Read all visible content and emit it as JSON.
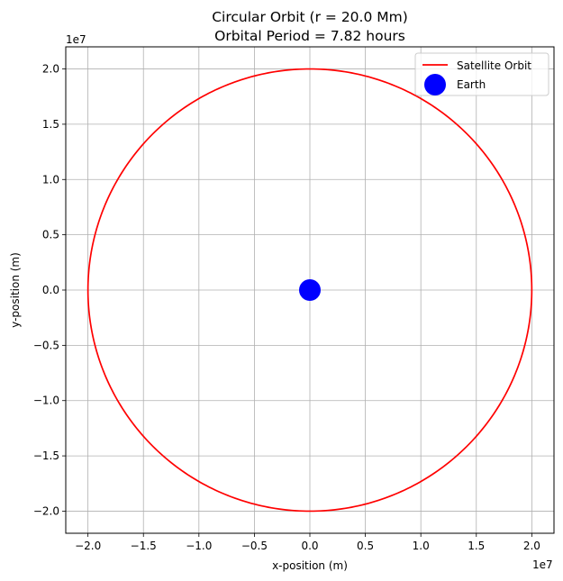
{
  "chart_data": {
    "type": "line",
    "title_lines": [
      "Circular Orbit (r = 20.0 Mm)",
      "Orbital Period = 7.82 hours"
    ],
    "xlabel": "x-position (m)",
    "ylabel": "y-position (m)",
    "x_offset_label": "1e7",
    "y_offset_label": "1e7",
    "xlim": [
      -22000000.0,
      22000000.0
    ],
    "ylim": [
      -22000000.0,
      22000000.0
    ],
    "xticks": [
      -20000000.0,
      -15000000.0,
      -10000000.0,
      -5000000.0,
      0,
      5000000.0,
      10000000.0,
      15000000.0,
      20000000.0
    ],
    "yticks": [
      -20000000.0,
      -15000000.0,
      -10000000.0,
      -5000000.0,
      0,
      5000000.0,
      10000000.0,
      15000000.0,
      20000000.0
    ],
    "xtick_labels": [
      "−2.0",
      "−1.5",
      "−1.0",
      "−0.5",
      "0.0",
      "0.5",
      "1.0",
      "1.5",
      "2.0"
    ],
    "ytick_labels": [
      "−2.0",
      "−1.5",
      "−1.0",
      "−0.5",
      "0.0",
      "0.5",
      "1.0",
      "1.5",
      "2.0"
    ],
    "grid": true,
    "legend_position": "upper-right",
    "series": [
      {
        "name": "Satellite Orbit",
        "kind": "line",
        "shape": "circle",
        "center": [
          0,
          0
        ],
        "radius": 20000000.0,
        "color": "#ff0000"
      },
      {
        "name": "Earth",
        "kind": "scatter",
        "x": [
          0
        ],
        "y": [
          0
        ],
        "color": "#0000ff"
      }
    ]
  }
}
